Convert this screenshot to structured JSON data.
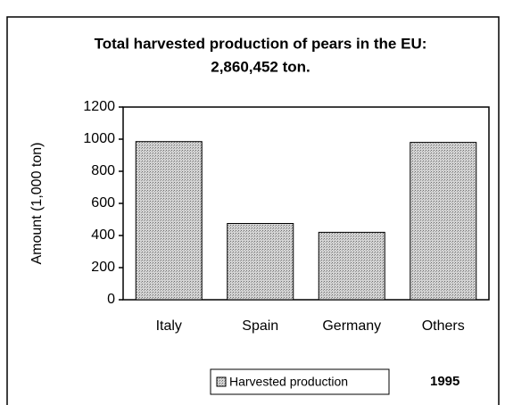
{
  "chart_data": {
    "type": "bar",
    "title": [
      "Total harvested production of pears in the EU:",
      "2,860,452 ton."
    ],
    "y_label": "Amount (1,000 ton)",
    "categories": [
      "Italy",
      "Spain",
      "Germany",
      "Others"
    ],
    "series": [
      {
        "name": "Harvested production",
        "color": "#b8b8b8",
        "values": [
          985,
          475,
          420,
          980
        ]
      }
    ],
    "ylim": [
      0,
      1200
    ],
    "yticks": [
      0,
      200,
      400,
      600,
      800,
      1000,
      1200
    ],
    "annotation": "1995",
    "legend": "bottom"
  }
}
